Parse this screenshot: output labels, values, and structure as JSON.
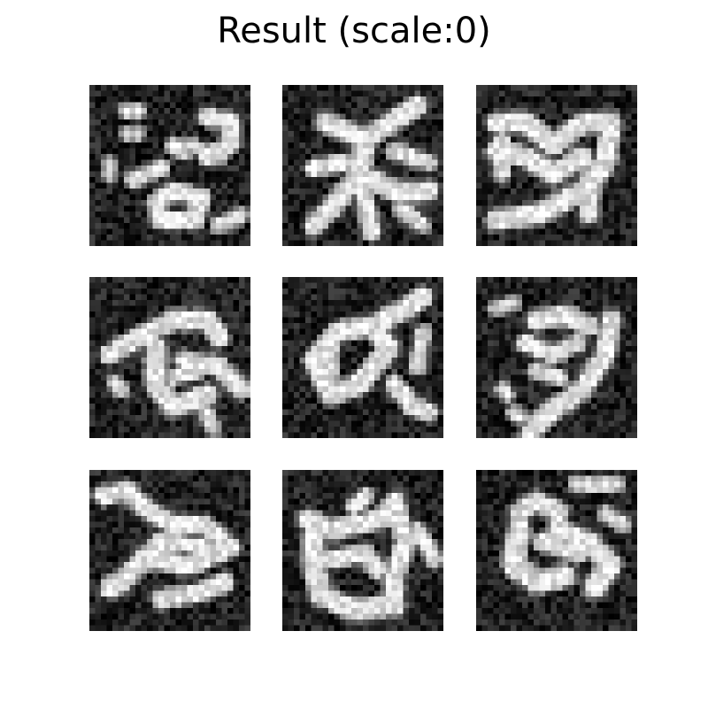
{
  "figure": {
    "title": "Result (scale:0)"
  },
  "grid": {
    "rows": 3,
    "cols": 3,
    "colormap": "gray",
    "tiles": [
      {
        "id": 1,
        "content": "noisy grayscale blob sample"
      },
      {
        "id": 2,
        "content": "noisy grayscale blob sample"
      },
      {
        "id": 3,
        "content": "noisy grayscale blob sample"
      },
      {
        "id": 4,
        "content": "noisy grayscale blob sample"
      },
      {
        "id": 5,
        "content": "noisy grayscale blob sample"
      },
      {
        "id": 6,
        "content": "noisy grayscale blob sample"
      },
      {
        "id": 7,
        "content": "noisy grayscale blob sample"
      },
      {
        "id": 8,
        "content": "noisy grayscale blob sample"
      },
      {
        "id": 9,
        "content": "noisy grayscale blob sample"
      }
    ]
  }
}
